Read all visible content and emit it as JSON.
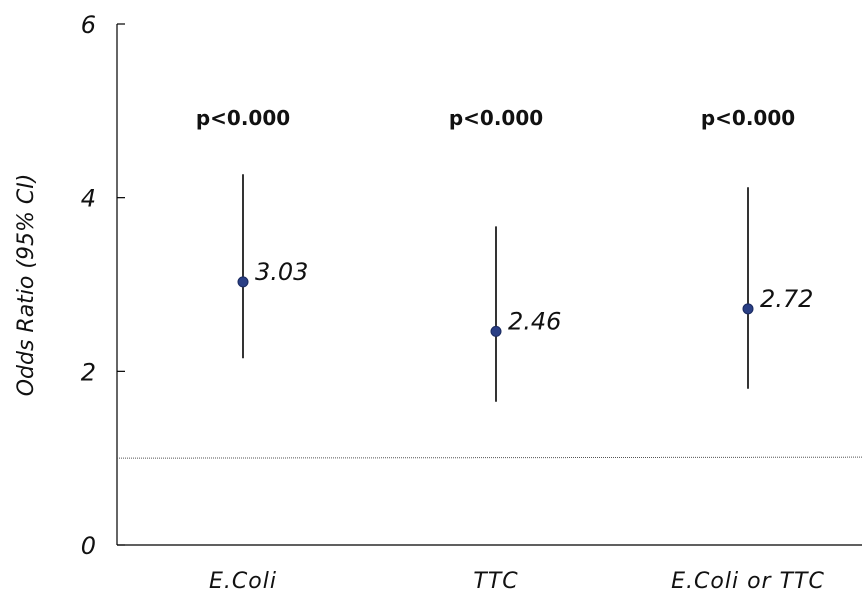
{
  "chart_data": {
    "type": "scatter",
    "subtype": "forest-plot",
    "title": "",
    "ylabel": "Odds Ratio  (95% CI)",
    "xlabel": "",
    "ylim": [
      0,
      6
    ],
    "yticks": [
      0,
      2,
      4,
      6
    ],
    "categories": [
      "E.Coli",
      "TTC",
      "E.Coli or TTC"
    ],
    "values": [
      3.03,
      2.46,
      2.72
    ],
    "value_labels": [
      "3.03",
      "2.46",
      "2.72"
    ],
    "ci_lower": [
      2.15,
      1.65,
      1.8
    ],
    "ci_upper": [
      4.27,
      3.67,
      4.12
    ],
    "p_values": [
      "p<0.000",
      "p<0.000",
      "p<0.000"
    ],
    "reference_line": 1,
    "grid": false,
    "colors": {
      "point": "#2a3f85",
      "whisker": "#000000",
      "axis": "#000000",
      "reference": "#555555"
    }
  }
}
